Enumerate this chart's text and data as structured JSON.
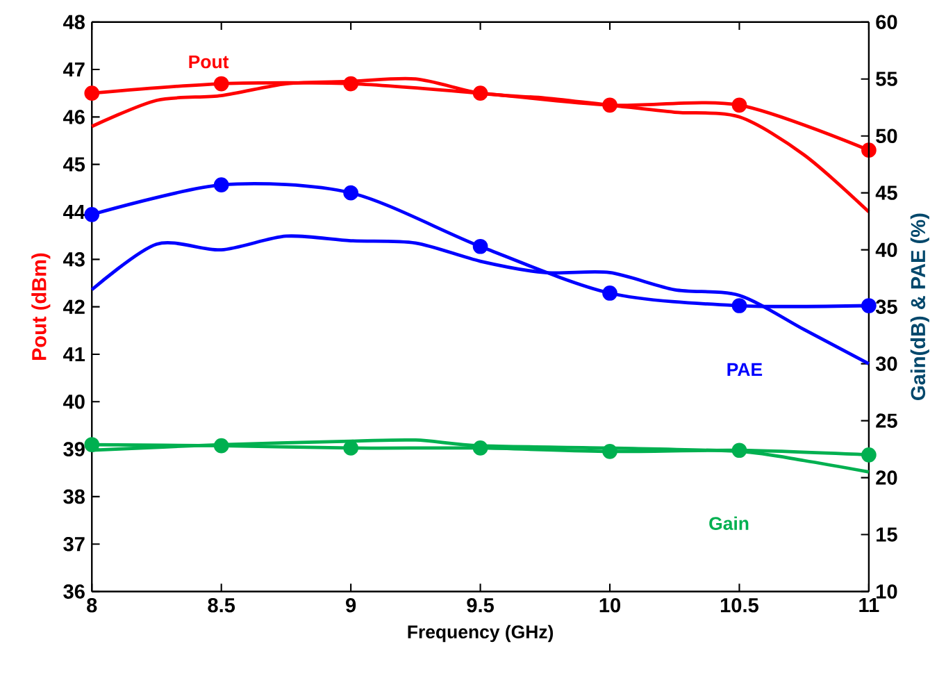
{
  "chart_data": {
    "type": "line",
    "xlabel": "Frequency (GHz)",
    "ylabel": "Pout (dBm)",
    "y2label": "Gain(dB) & PAE (%)",
    "xlim": [
      8,
      11
    ],
    "xticks": [
      8,
      8.5,
      9,
      9.5,
      10,
      10.5,
      11
    ],
    "ylim": [
      36,
      48
    ],
    "yticks": [
      36,
      37,
      38,
      39,
      40,
      41,
      42,
      43,
      44,
      45,
      46,
      47,
      48
    ],
    "y2lim": [
      10,
      60
    ],
    "y2ticks": [
      10,
      15,
      20,
      25,
      30,
      35,
      40,
      45,
      50,
      55,
      60
    ],
    "grid": false,
    "series": [
      {
        "color": "#ff0000",
        "marker": "circle",
        "x": [
          8,
          8.5,
          9,
          9.5,
          10,
          10.5,
          11
        ],
        "values": [
          46.5,
          46.7,
          46.7,
          46.5,
          46.25,
          46.25,
          45.3
        ]
      },
      {
        "color": "#ff0000",
        "marker": "none",
        "x": [
          8,
          8.25,
          8.5,
          8.75,
          9,
          9.25,
          9.5,
          9.75,
          10,
          10.25,
          10.5,
          10.75,
          11
        ],
        "values": [
          45.8,
          46.35,
          46.45,
          46.7,
          46.75,
          46.8,
          46.5,
          46.4,
          46.25,
          46.1,
          46.0,
          45.2,
          44.0
        ]
      },
      {
        "color": "#0000ff",
        "marker": "circle",
        "axis": "y2",
        "x": [
          8,
          8.5,
          9,
          9.5,
          10,
          10.5,
          11
        ],
        "values": [
          43.1,
          45.7,
          45.0,
          40.3,
          36.2,
          35.1,
          35.1
        ]
      },
      {
        "color": "#0000ff",
        "marker": "none",
        "axis": "y2",
        "x": [
          8,
          8.25,
          8.5,
          8.75,
          9,
          9.25,
          9.5,
          9.75,
          10,
          10.25,
          10.5,
          10.75,
          11
        ],
        "values": [
          36.5,
          40.5,
          40.0,
          41.2,
          40.8,
          40.6,
          39.0,
          38.0,
          38.0,
          36.5,
          36.0,
          33.0,
          30.0
        ]
      },
      {
        "color": "#00b050",
        "marker": "circle",
        "axis": "y2",
        "x": [
          8,
          8.5,
          9,
          9.5,
          10,
          10.5,
          11
        ],
        "values": [
          22.9,
          22.8,
          22.6,
          22.6,
          22.3,
          22.4,
          22.0
        ]
      },
      {
        "color": "#00b050",
        "marker": "none",
        "axis": "y2",
        "x": [
          8,
          8.5,
          9,
          9.25,
          9.5,
          10,
          10.5,
          10.75,
          11
        ],
        "values": [
          22.4,
          22.9,
          23.2,
          23.3,
          22.8,
          22.6,
          22.3,
          21.5,
          20.5
        ]
      }
    ],
    "annotations": [
      "Pout",
      "PAE",
      "Gain"
    ]
  }
}
